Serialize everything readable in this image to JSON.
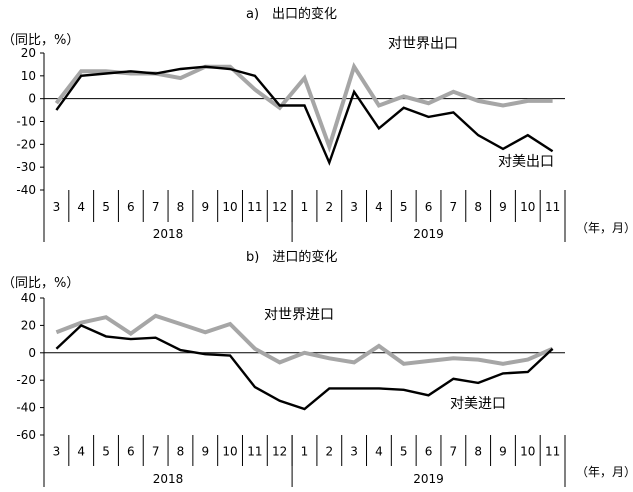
{
  "chart_data": [
    {
      "type": "line",
      "title": "a)　出口的变化",
      "unit_label": "（同比，%）",
      "ylim": [
        -40,
        20
      ],
      "yticks": [
        20,
        10,
        0,
        -10,
        -20,
        -30,
        -40
      ],
      "categories": [
        "3",
        "4",
        "5",
        "6",
        "7",
        "8",
        "9",
        "10",
        "11",
        "12",
        "1",
        "2",
        "3",
        "4",
        "5",
        "6",
        "7",
        "8",
        "9",
        "10",
        "11"
      ],
      "year_labels": [
        "2018",
        "2019"
      ],
      "axis_end_label": "（年，月）",
      "series": [
        {
          "name": "对世界出口",
          "color": "#a6a6a6",
          "values": [
            -2,
            12,
            12,
            11,
            11,
            9,
            14,
            14,
            4,
            -4,
            9,
            -21,
            14,
            -3,
            1,
            -2,
            3,
            -1,
            -3,
            -1,
            -1
          ]
        },
        {
          "name": "对美出口",
          "color": "#000000",
          "values": [
            -5,
            10,
            11,
            12,
            11,
            13,
            14,
            13,
            10,
            -3,
            -3,
            -28,
            3,
            -13,
            -4,
            -8,
            -6,
            -16,
            -22,
            -16,
            -23
          ]
        }
      ]
    },
    {
      "type": "line",
      "title": "b)　进口的变化",
      "unit_label": "（同比，%）",
      "ylim": [
        -60,
        40
      ],
      "yticks": [
        40,
        20,
        0,
        -20,
        -40,
        -60
      ],
      "categories": [
        "3",
        "4",
        "5",
        "6",
        "7",
        "8",
        "9",
        "10",
        "11",
        "12",
        "1",
        "2",
        "3",
        "4",
        "5",
        "6",
        "7",
        "8",
        "9",
        "10",
        "11"
      ],
      "year_labels": [
        "2018",
        "2019"
      ],
      "axis_end_label": "（年，月）",
      "series": [
        {
          "name": "对世界进口",
          "color": "#a6a6a6",
          "values": [
            15,
            22,
            26,
            14,
            27,
            21,
            15,
            21,
            3,
            -7,
            0,
            -4,
            -7,
            5,
            -8,
            -6,
            -4,
            -5,
            -8,
            -5,
            3
          ]
        },
        {
          "name": "对美进口",
          "color": "#000000",
          "values": [
            3,
            20,
            12,
            10,
            11,
            2,
            -1,
            -2,
            -25,
            -35,
            -41,
            -26,
            -26,
            -26,
            -27,
            -31,
            -19,
            -22,
            -15,
            -14,
            3
          ]
        }
      ]
    }
  ]
}
